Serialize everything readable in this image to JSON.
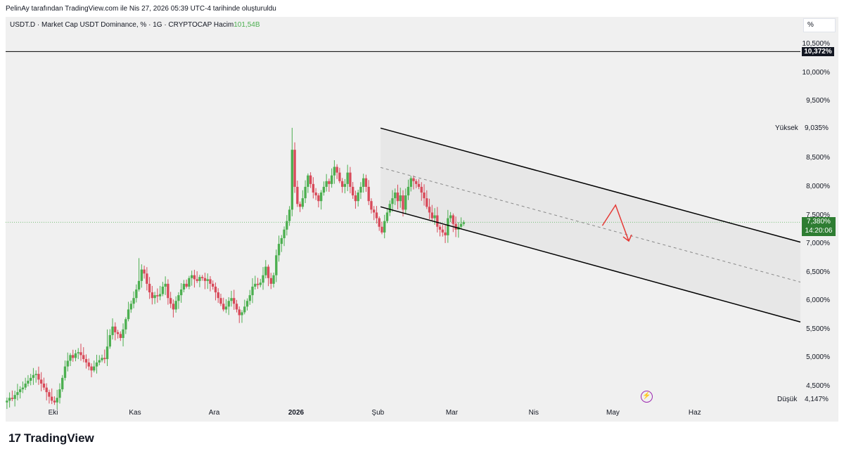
{
  "caption": "PelinAy tarafından TradingView.com ile Nis 27, 2026 05:39 UTC-4 tarihinde oluşturuldu",
  "legend": {
    "symbol": "USDT.D · Market Cap USDT Dominance, % · 1G · CRYPTOCAP",
    "volume_label": "Hacim",
    "volume_value": "101,54B"
  },
  "scale_button": "%",
  "price_tags": {
    "horizontal_line": "10,372%",
    "last_price": "7,380%",
    "countdown": "14:20:06"
  },
  "high": {
    "label": "Yüksek",
    "value": "9,035%"
  },
  "low": {
    "label": "Düşük",
    "value": "4,147%"
  },
  "brand": {
    "logo": "17",
    "name": "TradingView"
  },
  "colors": {
    "up": "#4caf50",
    "down": "#d84a5a",
    "channel": "#000000",
    "arrow": "#e53935",
    "event": "#9c27b0"
  },
  "icons": {
    "event_marker": "lightning-icon",
    "brand_logo": "tradingview-logo-icon"
  },
  "chart_data": {
    "type": "candlestick",
    "y_axis": {
      "ticks": [
        "10,500%",
        "10,000%",
        "9,500%",
        "8,500%",
        "8,000%",
        "7,500%",
        "7,000%",
        "6,500%",
        "6,000%",
        "5,500%",
        "5,000%",
        "4,500%"
      ],
      "tick_values": [
        10.5,
        10.0,
        9.5,
        8.5,
        8.0,
        7.5,
        7.0,
        6.5,
        6.0,
        5.5,
        5.0,
        4.5
      ],
      "range": [
        4.0,
        10.7
      ],
      "unit": "%"
    },
    "x_axis": {
      "ticks": [
        "Eki",
        "Kas",
        "Ara",
        "2026",
        "Şub",
        "Mar",
        "Nis",
        "May",
        "Haz"
      ],
      "tick_dates": [
        "2025-10-01",
        "2025-11-01",
        "2025-12-01",
        "2026-01-01",
        "2026-02-01",
        "2026-03-01",
        "2026-04-01",
        "2026-05-01",
        "2026-06-01"
      ],
      "bold_ticks": [
        "2026"
      ],
      "range": [
        "2025-09-13",
        "2026-07-11"
      ]
    },
    "horizontal_line": 10.372,
    "last_price": 7.38,
    "high": 9.035,
    "low": 4.147,
    "channel": {
      "upper": [
        [
          "2026-02-02",
          9.03
        ],
        [
          "2026-07-11",
          7.03
        ]
      ],
      "lower": [
        [
          "2026-02-02",
          7.65
        ],
        [
          "2026-07-11",
          5.63
        ]
      ],
      "median": [
        [
          "2026-02-02",
          8.34
        ],
        [
          "2026-07-11",
          6.33
        ]
      ]
    },
    "projection_arrow": [
      [
        "2026-04-27",
        7.32
      ],
      [
        "2026-05-02",
        7.68
      ],
      [
        "2026-05-07",
        7.05
      ]
    ],
    "event_marker_date": "2026-04-26",
    "series_daily_close": [
      4.25,
      4.3,
      4.28,
      4.35,
      4.4,
      4.45,
      4.48,
      4.55,
      4.6,
      4.65,
      4.7,
      4.72,
      4.62,
      4.55,
      4.48,
      4.4,
      4.32,
      4.25,
      4.22,
      4.3,
      4.45,
      4.65,
      4.85,
      4.95,
      5.05,
      5.0,
      5.08,
      5.1,
      5.05,
      4.98,
      4.92,
      4.85,
      4.78,
      4.85,
      4.92,
      4.96,
      5.0,
      4.98,
      5.2,
      5.4,
      5.55,
      5.45,
      5.42,
      5.35,
      5.5,
      5.68,
      5.85,
      5.95,
      6.05,
      6.2,
      6.35,
      6.55,
      6.48,
      6.3,
      6.15,
      6.05,
      6.1,
      6.08,
      6.12,
      6.25,
      6.3,
      6.05,
      5.95,
      5.85,
      6.0,
      6.1,
      6.2,
      6.3,
      6.25,
      6.4,
      6.45,
      6.38,
      6.35,
      6.42,
      6.4,
      6.35,
      6.38,
      6.3,
      6.25,
      6.15,
      6.05,
      5.95,
      5.85,
      5.9,
      6.0,
      6.05,
      5.95,
      5.85,
      5.75,
      5.8,
      5.9,
      6.0,
      6.1,
      6.25,
      6.3,
      6.28,
      6.32,
      6.45,
      6.6,
      6.4,
      6.3,
      6.45,
      6.8,
      7.0,
      7.1,
      7.25,
      7.4,
      7.6,
      8.65,
      8.0,
      7.7,
      7.65,
      7.8,
      8.0,
      8.2,
      8.05,
      7.9,
      7.85,
      7.75,
      7.9,
      8.0,
      8.1,
      8.05,
      8.2,
      8.35,
      8.25,
      8.1,
      8.0,
      8.05,
      8.25,
      8.0,
      7.85,
      7.75,
      7.9,
      8.0,
      8.15,
      8.0,
      7.75,
      7.6,
      7.55,
      7.45,
      7.3,
      7.2,
      7.4,
      7.55,
      7.7,
      7.8,
      7.9,
      7.75,
      7.85,
      7.6,
      7.85,
      8.0,
      8.15,
      8.1,
      8.05,
      8.0,
      7.9,
      7.8,
      7.65,
      7.55,
      7.45,
      7.5,
      7.3,
      7.25,
      7.2,
      7.15,
      7.45,
      7.5,
      7.35,
      7.25,
      7.3,
      7.35,
      7.38
    ]
  }
}
